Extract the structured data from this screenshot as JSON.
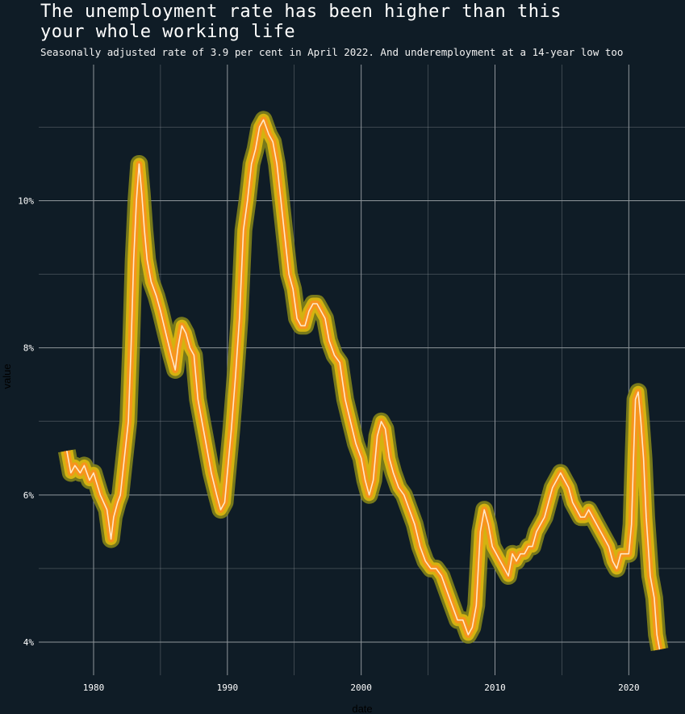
{
  "chart_data": {
    "type": "line",
    "title_lines": [
      "The unemployment rate has been higher than this",
      "your whole working life"
    ],
    "subtitle": "Seasonally adjusted rate of 3.9 per cent in April 2022. And underemployment at a 14-year low too",
    "xlabel": "date",
    "ylabel": "value",
    "xlim": [
      1975.9,
      2024.2
    ],
    "ylim": [
      3.55,
      11.85
    ],
    "x_ticks": [
      1980,
      1990,
      2000,
      2010,
      2020
    ],
    "x_tick_labels": [
      "1980",
      "1990",
      "2000",
      "2010",
      "2020"
    ],
    "y_ticks": [
      4,
      6,
      8,
      10
    ],
    "y_tick_labels": [
      "4%",
      "6%",
      "8%",
      "10%"
    ],
    "grid": true,
    "colors": {
      "background": "#0f1c26",
      "grid": "#8f969b",
      "glow_outer": "#8a8a1a",
      "glow_mid": "#d4b210",
      "glow_inner": "#f7941d",
      "line": "#ffe8c8"
    },
    "series": [
      {
        "x": [
          1978.0,
          1978.3,
          1978.6,
          1979.0,
          1979.3,
          1979.7,
          1980.0,
          1980.5,
          1981.0,
          1981.3,
          1981.5,
          1981.8,
          1982.0,
          1982.3,
          1982.6,
          1982.8,
          1983.0,
          1983.2,
          1983.4,
          1983.6,
          1983.8,
          1984.0,
          1984.3,
          1984.7,
          1985.0,
          1985.4,
          1985.8,
          1986.1,
          1986.3,
          1986.6,
          1986.9,
          1987.2,
          1987.5,
          1987.8,
          1988.1,
          1988.4,
          1988.8,
          1989.2,
          1989.5,
          1989.8,
          1990.0,
          1990.3,
          1990.6,
          1990.9,
          1991.2,
          1991.5,
          1991.8,
          1992.1,
          1992.4,
          1992.7,
          1992.9,
          1993.1,
          1993.4,
          1993.7,
          1994.0,
          1994.3,
          1994.6,
          1994.9,
          1995.2,
          1995.5,
          1995.8,
          1996.1,
          1996.4,
          1996.7,
          1997.0,
          1997.3,
          1997.6,
          1998.0,
          1998.4,
          1998.8,
          1999.2,
          1999.6,
          2000.0,
          2000.3,
          2000.6,
          2000.9,
          2001.2,
          2001.5,
          2001.8,
          2002.1,
          2002.4,
          2002.8,
          2003.2,
          2003.6,
          2004.0,
          2004.4,
          2004.8,
          2005.2,
          2005.6,
          2006.0,
          2006.4,
          2006.8,
          2007.2,
          2007.6,
          2008.0,
          2008.3,
          2008.6,
          2008.9,
          2009.2,
          2009.5,
          2009.8,
          2010.1,
          2010.4,
          2010.7,
          2011.0,
          2011.3,
          2011.6,
          2011.9,
          2012.2,
          2012.5,
          2012.8,
          2013.1,
          2013.4,
          2013.7,
          2014.0,
          2014.3,
          2014.6,
          2014.9,
          2015.2,
          2015.5,
          2015.8,
          2016.1,
          2016.4,
          2016.7,
          2017.0,
          2017.3,
          2017.6,
          2017.9,
          2018.2,
          2018.5,
          2018.8,
          2019.1,
          2019.4,
          2019.7,
          2020.0,
          2020.2,
          2020.35,
          2020.5,
          2020.7,
          2020.9,
          2021.1,
          2021.3,
          2021.6,
          2021.9,
          2022.1,
          2022.3
        ],
        "y": [
          6.6,
          6.3,
          6.4,
          6.3,
          6.4,
          6.2,
          6.3,
          6.0,
          5.8,
          5.4,
          5.7,
          5.9,
          6.0,
          6.5,
          7.0,
          8.0,
          9.2,
          10.0,
          10.5,
          10.1,
          9.6,
          9.2,
          8.9,
          8.7,
          8.5,
          8.2,
          7.9,
          7.7,
          8.0,
          8.3,
          8.2,
          8.0,
          7.9,
          7.3,
          7.0,
          6.7,
          6.3,
          6.0,
          5.8,
          5.9,
          6.3,
          6.9,
          7.6,
          8.4,
          9.6,
          10.0,
          10.5,
          10.7,
          11.0,
          11.1,
          11.0,
          10.9,
          10.8,
          10.5,
          10.0,
          9.5,
          9.0,
          8.8,
          8.4,
          8.3,
          8.3,
          8.5,
          8.6,
          8.6,
          8.5,
          8.4,
          8.1,
          7.9,
          7.8,
          7.3,
          7.0,
          6.7,
          6.5,
          6.2,
          6.0,
          6.2,
          6.8,
          7.0,
          6.9,
          6.5,
          6.3,
          6.1,
          6.0,
          5.8,
          5.6,
          5.3,
          5.1,
          5.0,
          5.0,
          4.9,
          4.7,
          4.5,
          4.3,
          4.3,
          4.1,
          4.2,
          4.5,
          5.5,
          5.8,
          5.6,
          5.3,
          5.2,
          5.1,
          5.0,
          4.9,
          5.2,
          5.1,
          5.2,
          5.2,
          5.3,
          5.3,
          5.5,
          5.6,
          5.7,
          5.9,
          6.1,
          6.2,
          6.3,
          6.2,
          6.1,
          5.9,
          5.8,
          5.7,
          5.7,
          5.8,
          5.7,
          5.6,
          5.5,
          5.4,
          5.3,
          5.1,
          5.0,
          5.2,
          5.2,
          5.2,
          5.6,
          6.5,
          7.3,
          7.4,
          7.0,
          6.5,
          5.7,
          4.9,
          4.6,
          4.1,
          3.9
        ]
      }
    ]
  }
}
